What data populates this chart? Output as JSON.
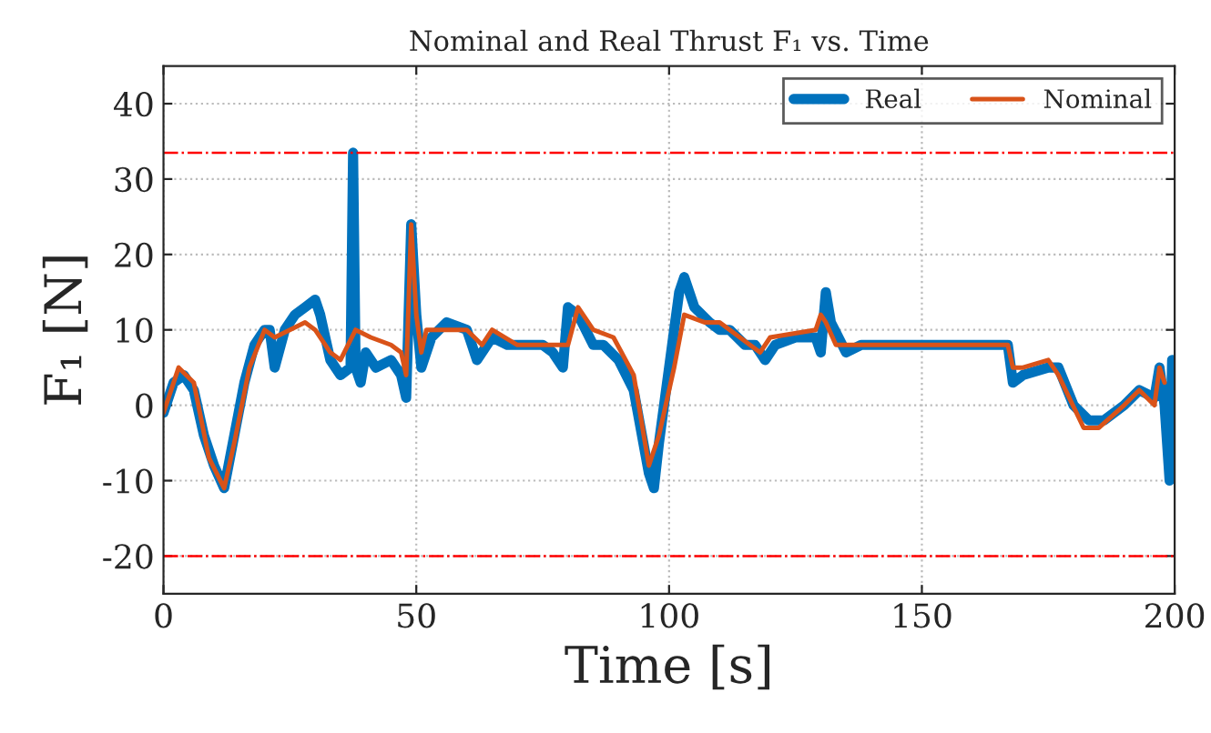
{
  "chart_data": {
    "type": "line",
    "title": "Nominal and Real Thrust F₁ vs. Time",
    "xlabel": "Time [s]",
    "ylabel": "F₁ [N]",
    "series": [
      {
        "name": "Real",
        "color": "#0072bd",
        "x": [
          0,
          2,
          4,
          6,
          8,
          10,
          12,
          14,
          16,
          18,
          20,
          21,
          22,
          24,
          26,
          28,
          30,
          31,
          33,
          35,
          37,
          37.5,
          38,
          39,
          40,
          42,
          45,
          47,
          48,
          49,
          50,
          51,
          53,
          56,
          60,
          62,
          65,
          68,
          75,
          77,
          79,
          80,
          82,
          85,
          87,
          90,
          93,
          96,
          97,
          98,
          100,
          102,
          103,
          105,
          108,
          110,
          112,
          115,
          117,
          119,
          121,
          125,
          129,
          130,
          131,
          132,
          135,
          138,
          145,
          155,
          165,
          167,
          168,
          170,
          175,
          177,
          180,
          183,
          186,
          190,
          193,
          196,
          197,
          198,
          199,
          199.5
        ],
        "values": [
          -1,
          3,
          4,
          2,
          -4,
          -8,
          -11,
          -4,
          3,
          8,
          10,
          10,
          5,
          10,
          12,
          13,
          14,
          12,
          6,
          4,
          5,
          33.5,
          5,
          3,
          7,
          5,
          6,
          4,
          1,
          24,
          12,
          5,
          9,
          11,
          10,
          6,
          9,
          8,
          8,
          7,
          5,
          13,
          12,
          8,
          8,
          6,
          2,
          -9,
          -11,
          -5,
          5,
          15,
          17,
          13,
          11,
          10,
          10,
          8,
          8,
          6,
          8,
          9,
          9,
          7,
          15,
          11,
          7,
          8,
          8,
          8,
          8,
          8,
          3,
          4,
          5,
          5,
          0,
          -2,
          -2,
          0,
          2,
          1,
          5,
          0,
          -10,
          6
        ]
      },
      {
        "name": "Nominal",
        "color": "#d95319",
        "x": [
          0,
          3,
          6,
          9,
          12,
          14,
          17,
          20,
          22,
          25,
          28,
          30,
          33,
          35,
          38,
          41,
          45,
          47,
          48,
          49,
          50,
          51,
          52,
          56,
          60,
          63,
          65,
          70,
          80,
          82,
          85,
          89,
          93,
          96,
          98,
          101,
          103,
          107,
          110,
          114,
          118,
          120,
          129,
          130,
          131,
          133,
          140,
          165,
          167,
          168,
          170,
          175,
          177,
          182,
          185,
          190,
          193,
          196,
          197,
          198
        ],
        "values": [
          -1,
          5,
          3,
          -7,
          -11,
          -5,
          5,
          10,
          9,
          10,
          11,
          10,
          7,
          6,
          10,
          9,
          8,
          7,
          4,
          24,
          12,
          7,
          10,
          10,
          10,
          8,
          10,
          8,
          8,
          13,
          10,
          9,
          4,
          -8,
          -4,
          5,
          12,
          11,
          11,
          9,
          7,
          9,
          10,
          12,
          11,
          8,
          8,
          8,
          8,
          5,
          5,
          6,
          4,
          -3,
          -3,
          0,
          2,
          0,
          5,
          3
        ]
      }
    ],
    "xlim": [
      0,
      200
    ],
    "xticks": [
      0,
      50,
      100,
      150,
      200
    ],
    "ylim": [
      -25,
      45
    ],
    "yticks": [
      -20,
      -10,
      0,
      10,
      20,
      30,
      40
    ],
    "ref_lines": [
      {
        "axis": "y",
        "value": 33.5,
        "color": "#ff0000",
        "line_style": "dashdot"
      },
      {
        "axis": "y",
        "value": -20,
        "color": "#ff0000",
        "line_style": "dashdot"
      }
    ],
    "grid": true,
    "legend": "top right",
    "line_style": "solid"
  }
}
